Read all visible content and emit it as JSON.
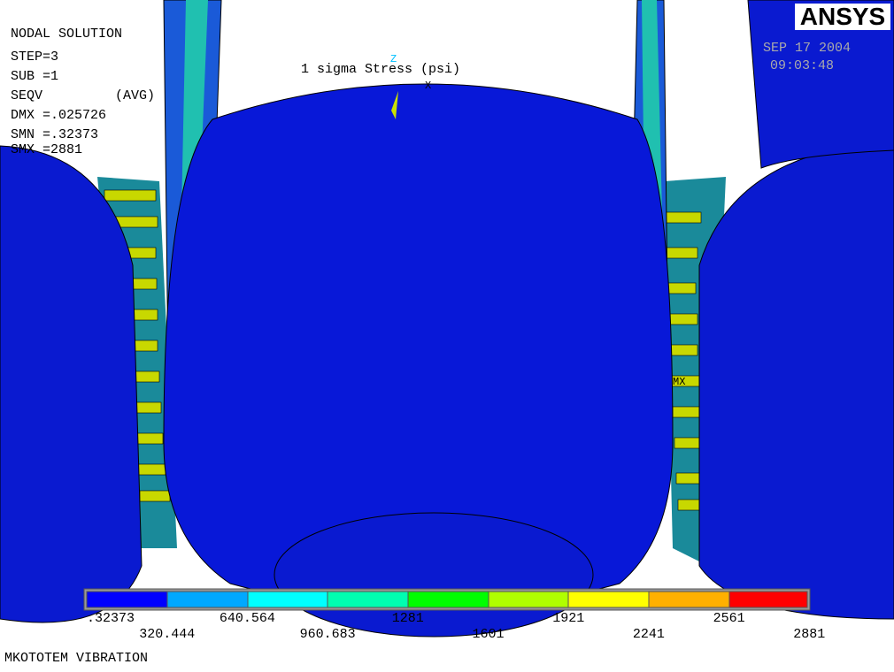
{
  "header": {
    "title": "NODAL SOLUTION",
    "lines": [
      "STEP=3",
      "SUB =1",
      "SEQV",
      "(AVG)",
      "DMX =.025726",
      "SMN =.32373",
      "SMX =2881"
    ]
  },
  "plot_title": "1 sigma Stress (psi)",
  "logo": "ANSYS",
  "date": "SEP 17 2004",
  "time": "09:03:48",
  "max_marker": "MX",
  "axes": [
    "Z",
    "X"
  ],
  "legend": {
    "labels": [
      ".32373",
      "320.444",
      "640.564",
      "960.683",
      "1281",
      "1601",
      "1921",
      "2241",
      "2561",
      "2881"
    ]
  },
  "footer": "MKOTOTEM VIBRATION"
}
